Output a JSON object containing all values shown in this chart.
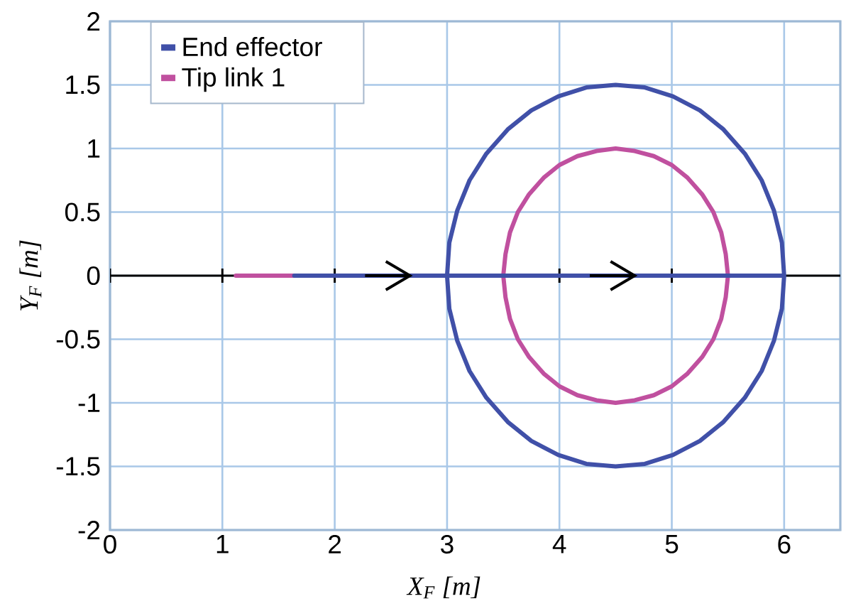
{
  "chart_data": {
    "type": "line",
    "xlabel": "X$_{F}$ [m]",
    "ylabel": "Y$_{F}$ [m]",
    "xlim": [
      0,
      6.5
    ],
    "ylim": [
      -2,
      2
    ],
    "xticks": [
      0,
      1,
      2,
      3,
      4,
      5,
      6
    ],
    "yticks": [
      -2,
      -1.5,
      -1,
      -0.5,
      0,
      0.5,
      1,
      1.5,
      2
    ],
    "grid": true,
    "legend": "top left",
    "series": [
      {
        "name": "End effector",
        "color": "#4050a8",
        "x": [
          1.64,
          3,
          3.02,
          3.09,
          3.2,
          3.35,
          3.54,
          3.75,
          3.99,
          4.24,
          4.5,
          4.76,
          5.01,
          5.25,
          5.46,
          5.65,
          5.8,
          5.91,
          5.98,
          6,
          5.98,
          5.91,
          5.8,
          5.65,
          5.46,
          5.25,
          5.01,
          4.76,
          4.5,
          4.24,
          3.99,
          3.75,
          3.54,
          3.35,
          3.2,
          3.09,
          3.02,
          3,
          6
        ],
        "values": [
          0,
          0,
          0.26,
          0.51,
          0.75,
          0.96,
          1.15,
          1.3,
          1.41,
          1.48,
          1.5,
          1.48,
          1.41,
          1.3,
          1.15,
          0.96,
          0.75,
          0.51,
          0.26,
          0,
          -0.26,
          -0.51,
          -0.75,
          -0.96,
          -1.15,
          -1.3,
          -1.41,
          -1.48,
          -1.5,
          -1.48,
          -1.41,
          -1.3,
          -1.15,
          -0.96,
          -0.75,
          -0.51,
          -0.26,
          0,
          0
        ]
      },
      {
        "name": "Tip link 1",
        "color": "#c0509f",
        "x": [
          1.12,
          3.5,
          3.52,
          3.56,
          3.63,
          3.73,
          3.86,
          4,
          4.16,
          4.33,
          4.5,
          4.67,
          4.84,
          5,
          5.14,
          5.27,
          5.37,
          5.44,
          5.48,
          5.5,
          5.48,
          5.44,
          5.37,
          5.27,
          5.14,
          5,
          4.84,
          4.67,
          4.5,
          4.33,
          4.16,
          4,
          3.86,
          3.73,
          3.63,
          3.56,
          3.52,
          3.5
        ],
        "values": [
          0,
          0,
          0.17,
          0.34,
          0.5,
          0.64,
          0.77,
          0.87,
          0.94,
          0.98,
          1,
          0.98,
          0.94,
          0.87,
          0.77,
          0.64,
          0.5,
          0.34,
          0.17,
          0,
          -0.17,
          -0.34,
          -0.5,
          -0.64,
          -0.77,
          -0.87,
          -0.94,
          -0.98,
          -1,
          -0.98,
          -0.94,
          -0.87,
          -0.77,
          -0.64,
          -0.5,
          -0.34,
          -0.17,
          0
        ]
      }
    ],
    "ref_lines": [
      {
        "axis": "y",
        "value": 0,
        "color": "#000000"
      }
    ]
  }
}
